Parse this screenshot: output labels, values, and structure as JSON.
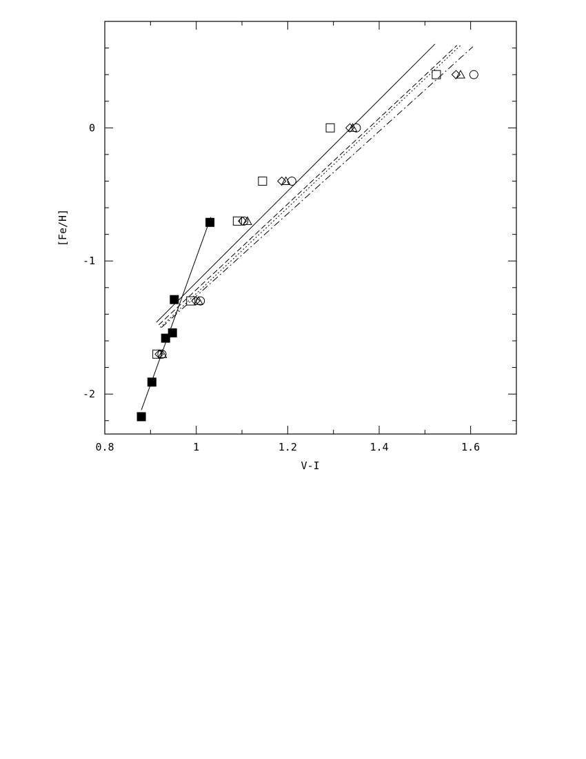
{
  "chart_data": {
    "type": "scatter",
    "title": "",
    "xlabel": "V-I",
    "ylabel": "[Fe/H]",
    "xlim": [
      0.8,
      1.7
    ],
    "ylim": [
      -2.3,
      0.8
    ],
    "xticks": [
      0.8,
      1.0,
      1.2,
      1.4,
      1.6
    ],
    "xtick_labels": [
      "0.8",
      "1",
      "1.2",
      "1.4",
      "1.6"
    ],
    "yticks": [
      -2,
      -1,
      0
    ],
    "ytick_labels": [
      "-2",
      "-1",
      "0"
    ],
    "grid": false,
    "legend": "none",
    "series": [
      {
        "marker": "filled-square",
        "connected": false,
        "points": [
          [
            0.88,
            -2.17
          ],
          [
            0.903,
            -1.91
          ],
          [
            0.933,
            -1.58
          ],
          [
            0.948,
            -1.54
          ],
          [
            0.952,
            -1.29
          ],
          [
            1.03,
            -0.71
          ]
        ]
      },
      {
        "marker": "open-square",
        "points": [
          [
            0.914,
            -1.7
          ],
          [
            0.988,
            -1.3
          ],
          [
            1.09,
            -0.7
          ],
          [
            1.145,
            -0.4
          ],
          [
            1.293,
            0.0
          ],
          [
            1.525,
            0.4
          ]
        ]
      },
      {
        "marker": "open-diamond",
        "points": [
          [
            0.919,
            -1.7
          ],
          [
            0.999,
            -1.3
          ],
          [
            1.101,
            -0.7
          ],
          [
            1.187,
            -0.4
          ],
          [
            1.336,
            0.0
          ],
          [
            1.568,
            0.4
          ]
        ]
      },
      {
        "marker": "open-triangle",
        "points": [
          [
            0.926,
            -1.7
          ],
          [
            1.005,
            -1.3
          ],
          [
            1.112,
            -0.7
          ],
          [
            1.196,
            -0.4
          ],
          [
            1.342,
            0.0
          ],
          [
            1.578,
            0.4
          ]
        ]
      },
      {
        "marker": "open-circle",
        "points": [
          [
            0.925,
            -1.7
          ],
          [
            1.009,
            -1.3
          ],
          [
            1.104,
            -0.7
          ],
          [
            1.209,
            -0.4
          ],
          [
            1.35,
            0.0
          ],
          [
            1.607,
            0.4
          ]
        ]
      }
    ],
    "lines": [
      {
        "style": "solid",
        "points": [
          [
            0.88,
            -2.12
          ],
          [
            1.032,
            -0.67
          ]
        ]
      },
      {
        "style": "solid",
        "points": [
          [
            0.913,
            -1.46
          ],
          [
            1.522,
            0.63
          ]
        ]
      },
      {
        "style": "dashed",
        "points": [
          [
            0.918,
            -1.48
          ],
          [
            1.57,
            0.62
          ]
        ]
      },
      {
        "style": "dotted",
        "points": [
          [
            0.921,
            -1.5
          ],
          [
            1.578,
            0.62
          ]
        ]
      },
      {
        "style": "dash-dot",
        "points": [
          [
            0.924,
            -1.5
          ],
          [
            1.605,
            0.61
          ]
        ]
      }
    ]
  }
}
